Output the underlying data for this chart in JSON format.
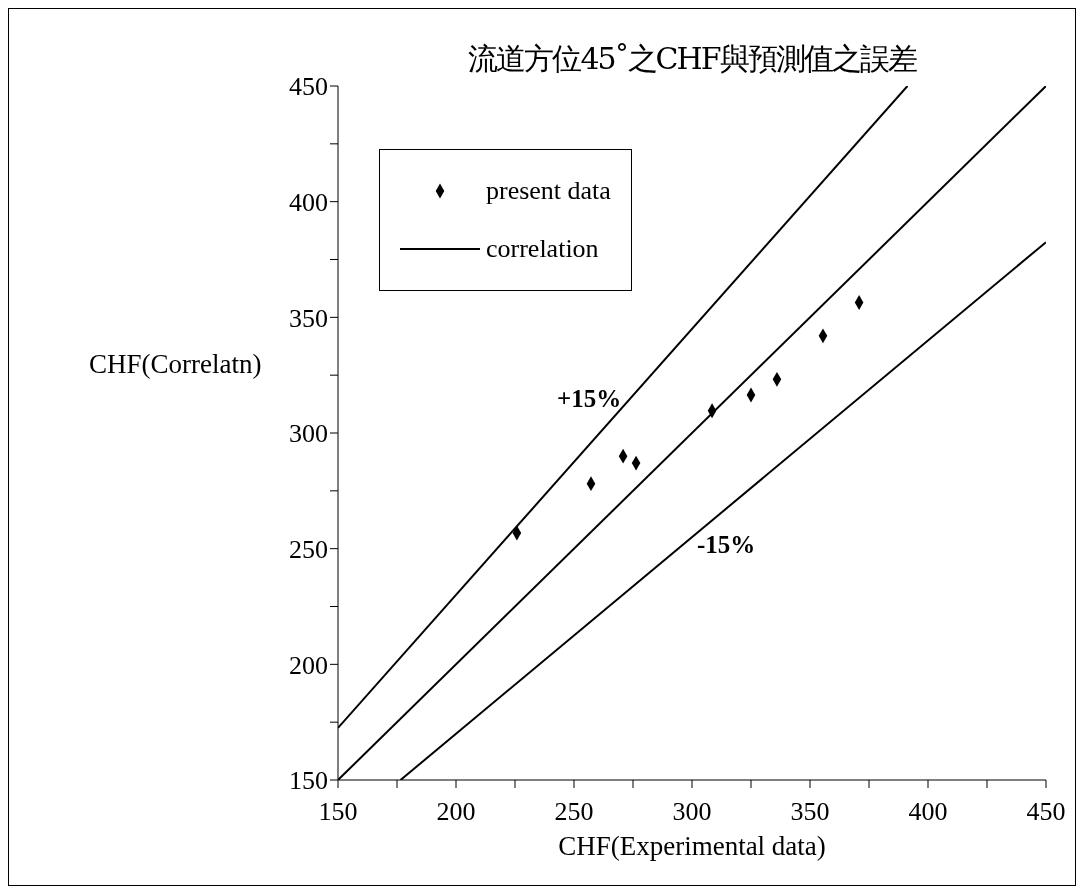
{
  "chart_data": {
    "type": "scatter",
    "title": "流道方位45˚之CHF與預測值之誤差",
    "xlabel": "CHF(Experimental data)",
    "ylabel": "CHF(Correlatn)",
    "xlim": [
      150,
      450
    ],
    "ylim": [
      150,
      450
    ],
    "xticks": [
      150,
      {
        "value": 175,
        "label": null
      },
      200,
      {
        "value": 225,
        "label": null
      },
      250,
      {
        "value": 275,
        "label": null
      },
      300,
      {
        "value": 325,
        "label": null
      },
      350,
      {
        "value": 375,
        "label": null
      },
      400,
      {
        "value": 425,
        "label": null
      },
      450
    ],
    "yticks": [
      150,
      {
        "value": 175,
        "label": null
      },
      200,
      {
        "value": 225,
        "label": null
      },
      250,
      {
        "value": 275,
        "label": null
      },
      300,
      {
        "value": 325,
        "label": null
      },
      350,
      {
        "value": 375,
        "label": null
      },
      400,
      {
        "value": 425,
        "label": null
      },
      450
    ],
    "grid": false,
    "legend": "top left",
    "series": [
      {
        "name": "present data",
        "marker": "diamond",
        "color": "#000000",
        "x": [
          225.8,
          257.2,
          270.8,
          276.3,
          308.5,
          325,
          336,
          355.5,
          370.8
        ],
        "values": [
          256.8,
          278.1,
          290,
          287,
          309.6,
          316.4,
          323.2,
          342,
          356.4
        ]
      },
      {
        "name": "correlation",
        "type": "line",
        "marker": "none",
        "line_style": "solid",
        "color": "#000000",
        "x": [
          150,
          450
        ],
        "values": [
          150,
          450
        ]
      },
      {
        "type": "line",
        "marker": "none",
        "line_style": "solid",
        "color": "#000000",
        "x": [
          150,
          391.3
        ],
        "values": [
          172.5,
          450
        ]
      },
      {
        "type": "line",
        "marker": "none",
        "line_style": "solid",
        "color": "#000000",
        "x": [
          176.5,
          450
        ],
        "values": [
          150,
          382.5
        ]
      }
    ],
    "annotations": [
      "+15%",
      "-15%"
    ]
  }
}
